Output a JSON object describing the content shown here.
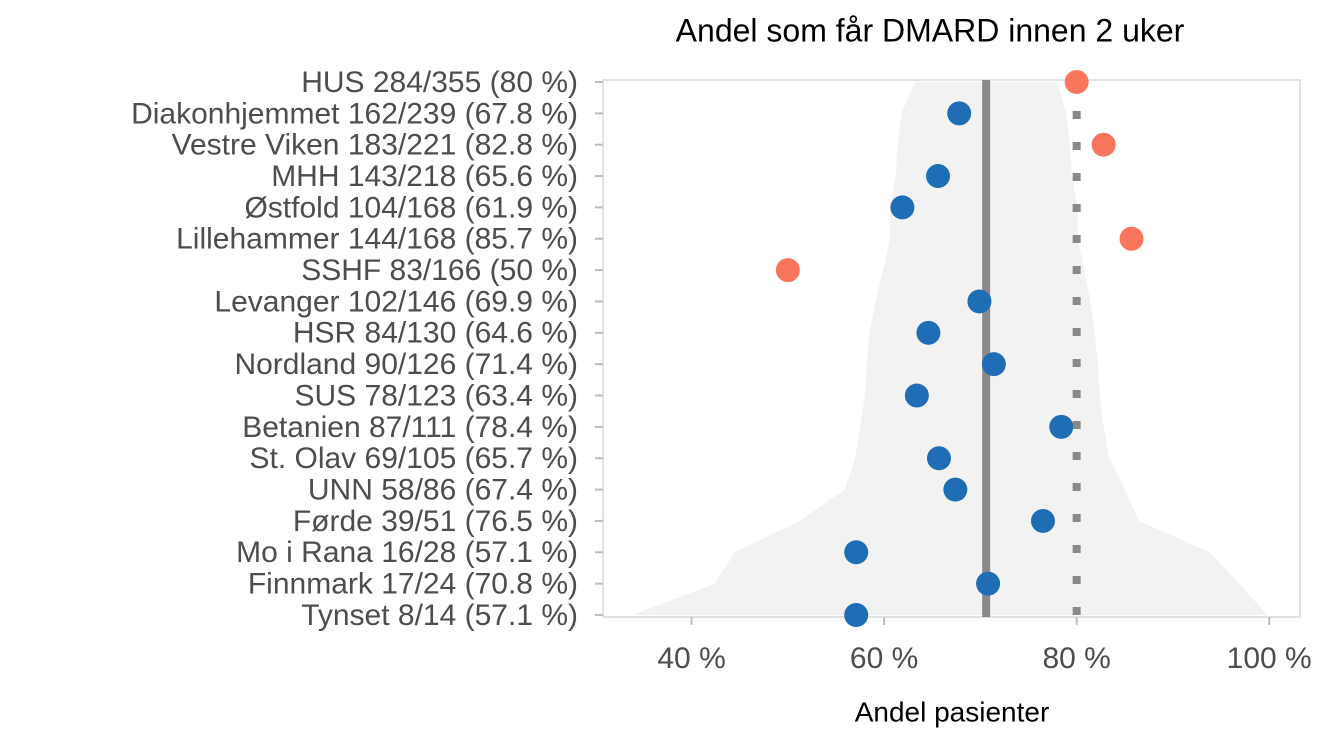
{
  "chart_data": {
    "type": "funnel_dot",
    "title": "Andel som får DMARD innen 2 uker",
    "x_label": "Andel pasienter",
    "categories": [
      "HUS 284/355 (80 %)",
      "Diakonhjemmet 162/239 (67.8 %)",
      "Vestre Viken 183/221 (82.8 %)",
      "MHH 143/218 (65.6 %)",
      "Østfold 104/168 (61.9 %)",
      "Lillehammer 144/168 (85.7 %)",
      "SSHF 83/166 (50 %)",
      "Levanger 102/146 (69.9 %)",
      "HSR 84/130 (64.6 %)",
      "Nordland 90/126 (71.4 %)",
      "SUS 78/123 (63.4 %)",
      "Betanien 87/111 (78.4 %)",
      "St. Olav 69/105 (65.7 %)",
      "UNN 58/86 (67.4 %)",
      "Førde 39/51 (76.5 %)",
      "Mo i Rana 16/28 (57.1 %)",
      "Finnmark 17/24 (70.8 %)",
      "Tynset 8/14 (57.1 %)"
    ],
    "values": [
      80,
      67.8,
      82.8,
      65.6,
      61.9,
      85.7,
      50,
      69.9,
      64.6,
      71.4,
      63.4,
      78.4,
      65.7,
      67.4,
      76.5,
      57.1,
      70.8,
      57.1
    ],
    "funnel_lower": [
      63.2,
      61.8,
      61.4,
      61.2,
      60.6,
      60.6,
      59.9,
      59.1,
      58.5,
      58.2,
      58.0,
      57.5,
      57.0,
      55.9,
      51.2,
      44.5,
      42.4,
      33.9
    ],
    "funnel_upper": [
      78.0,
      78.9,
      79.3,
      79.5,
      80.1,
      80.1,
      80.8,
      81.4,
      81.9,
      82.2,
      82.4,
      82.8,
      83.4,
      85.0,
      86.5,
      93.8,
      96.9,
      99.8
    ],
    "mean_line": 70.6,
    "target_line": 80,
    "colors": {
      "inside": "#1f6db5",
      "outside": "#f8765c",
      "funnel": "#f2f2f2",
      "mean": "#898989",
      "target": "#898989"
    },
    "xlim": [
      30.8,
      103.2
    ],
    "xticks": [
      {
        "value": 40,
        "label": "40 %"
      },
      {
        "value": 60,
        "label": "60 %"
      },
      {
        "value": 80,
        "label": "80 %"
      },
      {
        "value": 100,
        "label": "100 %"
      }
    ]
  }
}
